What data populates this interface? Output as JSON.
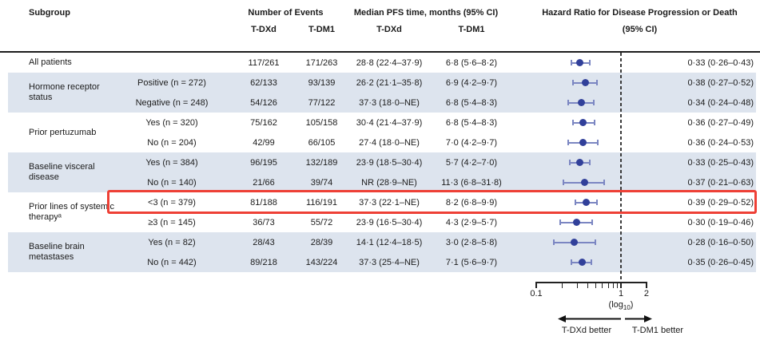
{
  "colors": {
    "band": "#dde4ee",
    "marker": "#31409a",
    "whisker": "#7b86c2",
    "highlight": "#ee4036",
    "refline": "#3a3a3a"
  },
  "table": {
    "headers": {
      "subgroup": "Subgroup",
      "events": "Number of Events",
      "pfs": "Median PFS time, months (95% CI)",
      "hr_line1": "Hazard Ratio for Disease Progression or Death",
      "hr_line2": "(95% CI)",
      "ev_tdxd": "T-DXd",
      "ev_tdm1": "T-DM1",
      "pfs_tdxd": "T-DXd",
      "pfs_tdm1": "T-DM1"
    },
    "groups": [
      {
        "label": "All patients",
        "shaded": false,
        "rows": [
          {
            "level": "",
            "ev_dxd": "117/261",
            "ev_dm1": "171/263",
            "pfs_dxd": "28·8 (22·4–37·9)",
            "pfs_dm1": "6·8 (5·6–8·2)",
            "hr_text": "0·33 (0·26–0·43)"
          }
        ]
      },
      {
        "label": "Hormone receptor status",
        "shaded": true,
        "rows": [
          {
            "level": "Positive (n = 272)",
            "ev_dxd": "62/133",
            "ev_dm1": "93/139",
            "pfs_dxd": "26·2 (21·1–35·8)",
            "pfs_dm1": "6·9 (4·2–9·7)",
            "hr_text": "0·38 (0·27–0·52)"
          },
          {
            "level": "Negative (n = 248)",
            "ev_dxd": "54/126",
            "ev_dm1": "77/122",
            "pfs_dxd": "37·3 (18·0–NE)",
            "pfs_dm1": "6·8 (5·4–8·3)",
            "hr_text": "0·34 (0·24–0·48)"
          }
        ]
      },
      {
        "label": "Prior pertuzumab",
        "shaded": false,
        "rows": [
          {
            "level": "Yes (n = 320)",
            "ev_dxd": "75/162",
            "ev_dm1": "105/158",
            "pfs_dxd": "30·4 (21·4–37·9)",
            "pfs_dm1": "6·8 (5·4–8·3)",
            "hr_text": "0·36 (0·27–0·49)"
          },
          {
            "level": "No (n = 204)",
            "ev_dxd": "42/99",
            "ev_dm1": "66/105",
            "pfs_dxd": "27·4 (18·0–NE)",
            "pfs_dm1": "7·0 (4·2–9·7)",
            "hr_text": "0·36 (0·24–0·53)"
          }
        ]
      },
      {
        "label": "Baseline visceral disease",
        "shaded": true,
        "rows": [
          {
            "level": "Yes (n = 384)",
            "ev_dxd": "96/195",
            "ev_dm1": "132/189",
            "pfs_dxd": "23·9 (18·5–30·4)",
            "pfs_dm1": "5·7 (4·2–7·0)",
            "hr_text": "0·33 (0·25–0·43)"
          },
          {
            "level": "No (n = 140)",
            "ev_dxd": "21/66",
            "ev_dm1": "39/74",
            "pfs_dxd": "NR (28·9–NE)",
            "pfs_dm1": "11·3 (6·8–31·8)",
            "hr_text": "0·37 (0·21–0·63)"
          }
        ]
      },
      {
        "label": "Prior lines of systemic therapyᵃ",
        "shaded": false,
        "rows": [
          {
            "level": "<3 (n = 379)",
            "ev_dxd": "81/188",
            "ev_dm1": "116/191",
            "pfs_dxd": "37·3 (22·1–NE)",
            "pfs_dm1": "8·2 (6·8–9·9)",
            "hr_text": "0·39 (0·29–0·52)",
            "highlighted": true
          },
          {
            "level": "≥3 (n = 145)",
            "ev_dxd": "36/73",
            "ev_dm1": "55/72",
            "pfs_dxd": "23·9 (16·5–30·4)",
            "pfs_dm1": "4·3 (2·9–5·7)",
            "hr_text": "0·30 (0·19–0·46)"
          }
        ]
      },
      {
        "label": "Baseline brain metastases",
        "shaded": true,
        "rows": [
          {
            "level": "Yes (n = 82)",
            "ev_dxd": "28/43",
            "ev_dm1": "28/39",
            "pfs_dxd": "14·1 (12·4–18·5)",
            "pfs_dm1": "3·0 (2·8–5·8)",
            "hr_text": "0·28 (0·16–0·50)"
          },
          {
            "level": "No (n = 442)",
            "ev_dxd": "89/218",
            "ev_dm1": "143/224",
            "pfs_dxd": "37·3 (25·4–NE)",
            "pfs_dm1": "7·1 (5·6–9·7)",
            "hr_text": "0·35 (0·26–0·45)"
          }
        ]
      }
    ]
  },
  "axis": {
    "scale_pre": "(log",
    "scale_sub": "10",
    "scale_post": ")"
  },
  "footer": {
    "left_arrow_label": "T-DXd better",
    "right_arrow_label": "T-DM1 better"
  },
  "chart_data": {
    "type": "scatter",
    "subtype": "forest_plot",
    "title": "Hazard Ratio for Disease Progression or Death (95% CI)",
    "x_scale": "log10",
    "xlim": [
      0.1,
      2
    ],
    "x_ticks": [
      0.1,
      1,
      2
    ],
    "x_tick_labels": [
      "0.1",
      "1",
      "2"
    ],
    "minor_ticks": [
      0.2,
      0.3,
      0.4,
      0.5,
      0.6,
      0.7,
      0.8,
      0.9
    ],
    "reference_line": 1,
    "points": [
      {
        "label": "All patients",
        "hr": 0.33,
        "ci": [
          0.26,
          0.43
        ]
      },
      {
        "label": "Hormone receptor status: Positive (n = 272)",
        "hr": 0.38,
        "ci": [
          0.27,
          0.52
        ]
      },
      {
        "label": "Hormone receptor status: Negative (n = 248)",
        "hr": 0.34,
        "ci": [
          0.24,
          0.48
        ]
      },
      {
        "label": "Prior pertuzumab: Yes (n = 320)",
        "hr": 0.36,
        "ci": [
          0.27,
          0.49
        ]
      },
      {
        "label": "Prior pertuzumab: No (n = 204)",
        "hr": 0.36,
        "ci": [
          0.24,
          0.53
        ]
      },
      {
        "label": "Baseline visceral disease: Yes (n = 384)",
        "hr": 0.33,
        "ci": [
          0.25,
          0.43
        ]
      },
      {
        "label": "Baseline visceral disease: No (n = 140)",
        "hr": 0.37,
        "ci": [
          0.21,
          0.63
        ]
      },
      {
        "label": "Prior lines of systemic therapy: <3 (n = 379)",
        "hr": 0.39,
        "ci": [
          0.29,
          0.52
        ]
      },
      {
        "label": "Prior lines of systemic therapy: ≥3 (n = 145)",
        "hr": 0.3,
        "ci": [
          0.19,
          0.46
        ]
      },
      {
        "label": "Baseline brain metastases: Yes (n = 82)",
        "hr": 0.28,
        "ci": [
          0.16,
          0.5
        ]
      },
      {
        "label": "Baseline brain metastases: No (n = 442)",
        "hr": 0.35,
        "ci": [
          0.26,
          0.45
        ]
      }
    ]
  }
}
